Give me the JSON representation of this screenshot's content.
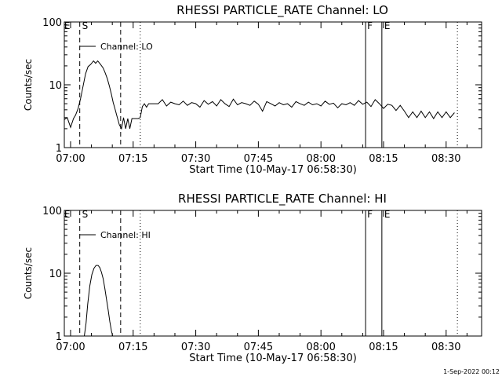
{
  "footer": {
    "date_stamp": "1-Sep-2022 00:12"
  },
  "chart_data": [
    {
      "type": "line",
      "title": "RHESSI PARTICLE_RATE Channel: LO",
      "xlabel": "Start Time (10-May-17 06:58:30)",
      "ylabel": "Counts/sec",
      "legend_label": "Channel: LO",
      "legend_position": "top-left",
      "yscale": "log",
      "ylim": [
        1,
        100
      ],
      "y_ticks": [
        "1",
        "10",
        "100"
      ],
      "x_range_minutes": [
        -1.5,
        98.5
      ],
      "x_ticks": [
        {
          "minute": 0,
          "label": "07:00"
        },
        {
          "minute": 15,
          "label": "07:15"
        },
        {
          "minute": 30,
          "label": "07:30"
        },
        {
          "minute": 45,
          "label": "07:45"
        },
        {
          "minute": 60,
          "label": "08:00"
        },
        {
          "minute": 75,
          "label": "08:15"
        },
        {
          "minute": 90,
          "label": "08:30"
        }
      ],
      "markers": [
        {
          "label": "E",
          "minute": -0.8,
          "style": "text"
        },
        {
          "label": "S",
          "minute": 2.2,
          "style": "dashed"
        },
        {
          "label": "",
          "minute": 12.0,
          "style": "dashed"
        },
        {
          "label": "",
          "minute": 16.7,
          "style": "dotted"
        },
        {
          "label": "F",
          "minute": 70.7,
          "style": "solid"
        },
        {
          "label": "E",
          "minute": 74.6,
          "style": "solid"
        },
        {
          "label": "",
          "minute": 92.7,
          "style": "dotted"
        }
      ],
      "series": [
        {
          "name": "Channel: LO",
          "x": [
            -1.5,
            -0.8,
            0,
            0.7,
            1.2,
            1.8,
            2.4,
            3,
            3.6,
            4.2,
            4.8,
            5.5,
            6,
            6.5,
            7.2,
            7.8,
            8.3,
            8.8,
            9.3,
            9.8,
            10.2,
            10.7,
            11.2,
            11.7,
            12.2,
            12.7,
            13.2,
            13.7,
            14.2,
            14.7,
            15.2,
            15.7,
            16.2,
            16.7,
            17.2,
            17.7,
            18.2,
            18.7,
            19.2,
            19.7,
            20.2,
            21,
            22,
            23,
            24,
            25,
            26,
            27,
            28,
            29,
            30,
            31,
            32,
            33,
            34,
            35,
            36,
            37,
            38,
            39,
            40,
            41,
            42,
            43,
            44,
            45,
            46,
            47,
            48,
            49,
            50,
            51,
            52,
            53,
            54,
            55,
            56,
            57,
            58,
            59,
            60,
            61,
            62,
            63,
            64,
            65,
            66,
            67,
            68,
            69,
            70,
            71,
            72,
            73,
            74,
            75,
            76,
            77,
            78,
            79,
            80,
            81,
            82,
            83,
            84,
            85,
            86,
            87,
            88,
            89,
            90,
            91,
            92
          ],
          "values": [
            2.8,
            3.0,
            2.1,
            2.9,
            3.3,
            4.2,
            6.0,
            9.5,
            15.0,
            19.5,
            21.0,
            24.0,
            22.0,
            24.0,
            21.0,
            18.5,
            15.5,
            12.5,
            9.5,
            7.0,
            5.3,
            4.0,
            3.0,
            2.3,
            2.0,
            3.0,
            2.0,
            2.9,
            2.0,
            2.9,
            2.9,
            2.9,
            2.9,
            3.0,
            4.5,
            5.0,
            4.4,
            5.0,
            5.0,
            5.0,
            5.0,
            5.0,
            5.8,
            4.6,
            5.3,
            5.0,
            4.8,
            5.5,
            4.7,
            5.2,
            5.0,
            4.4,
            5.6,
            4.9,
            5.4,
            4.6,
            5.8,
            5.0,
            4.5,
            5.9,
            4.8,
            5.2,
            5.0,
            4.7,
            5.5,
            4.9,
            3.8,
            5.4,
            5.0,
            4.6,
            5.2,
            4.8,
            5.0,
            4.4,
            5.4,
            5.0,
            4.7,
            5.3,
            4.8,
            5.0,
            4.6,
            5.5,
            4.9,
            5.1,
            4.3,
            5.0,
            4.8,
            5.2,
            4.7,
            5.6,
            4.9,
            5.3,
            4.5,
            5.8,
            5.0,
            4.2,
            4.9,
            4.7,
            3.9,
            4.7,
            3.8,
            3.0,
            3.7,
            3.0,
            3.8,
            3.0,
            3.7,
            2.9,
            3.7,
            3.0,
            3.7,
            3.0,
            3.6
          ]
        }
      ]
    },
    {
      "type": "line",
      "title": "RHESSI PARTICLE_RATE Channel: HI",
      "xlabel": "Start Time (10-May-17 06:58:30)",
      "ylabel": "Counts/sec",
      "legend_label": "Channel: HI",
      "legend_position": "top-left",
      "yscale": "log",
      "ylim": [
        1,
        100
      ],
      "y_ticks": [
        "1",
        "10",
        "100"
      ],
      "x_range_minutes": [
        -1.5,
        98.5
      ],
      "x_ticks": [
        {
          "minute": 0,
          "label": "07:00"
        },
        {
          "minute": 15,
          "label": "07:15"
        },
        {
          "minute": 30,
          "label": "07:30"
        },
        {
          "minute": 45,
          "label": "07:45"
        },
        {
          "minute": 60,
          "label": "08:00"
        },
        {
          "minute": 75,
          "label": "08:15"
        },
        {
          "minute": 90,
          "label": "08:30"
        }
      ],
      "markers": [
        {
          "label": "E",
          "minute": -0.8,
          "style": "text"
        },
        {
          "label": "S",
          "minute": 2.2,
          "style": "dashed"
        },
        {
          "label": "",
          "minute": 12.0,
          "style": "dashed"
        },
        {
          "label": "",
          "minute": 16.7,
          "style": "dotted"
        },
        {
          "label": "F",
          "minute": 70.7,
          "style": "solid"
        },
        {
          "label": "E",
          "minute": 74.6,
          "style": "solid"
        },
        {
          "label": "",
          "minute": 92.7,
          "style": "dotted"
        }
      ],
      "series": [
        {
          "name": "Channel: HI",
          "x": [
            3.3,
            3.7,
            4.1,
            4.6,
            5.1,
            5.6,
            6.1,
            6.6,
            7.0,
            7.4,
            7.8,
            8.2,
            8.6,
            9.0,
            9.4,
            9.8,
            10.1
          ],
          "values": [
            1.0,
            1.6,
            3.2,
            6.3,
            9.5,
            12.0,
            13.3,
            13.3,
            12.3,
            10.4,
            8.2,
            5.8,
            3.9,
            2.6,
            1.7,
            1.2,
            1.0
          ]
        }
      ]
    }
  ]
}
